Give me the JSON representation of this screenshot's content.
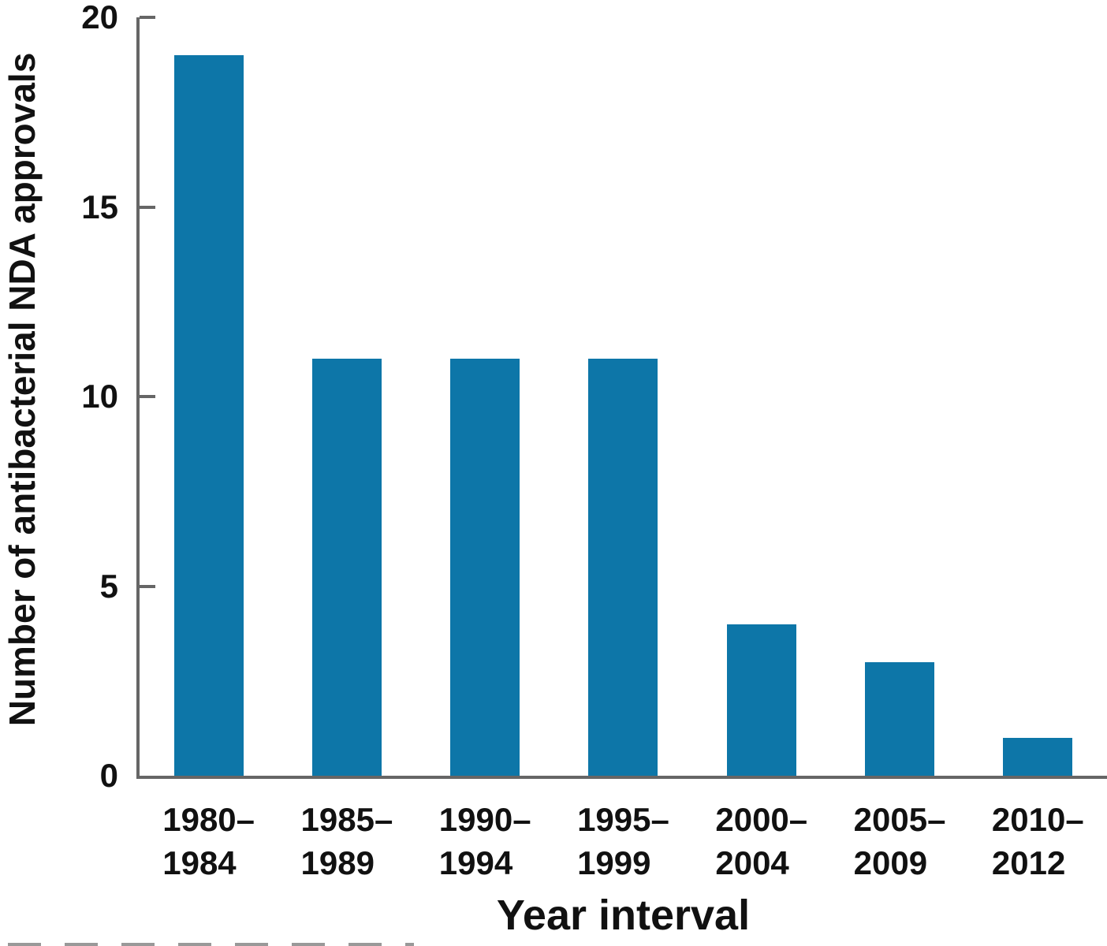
{
  "figure": {
    "y_axis_title": "Number of antibacterial NDA approvals",
    "x_axis_title": "Year interval"
  },
  "chart_data": {
    "type": "bar",
    "title": "",
    "xlabel": "Year interval",
    "ylabel": "Number of antibacterial NDA approvals",
    "categories": [
      "1980–1984",
      "1985–1989",
      "1990–1994",
      "1995–1999",
      "2000–2004",
      "2005–2009",
      "2010–2012"
    ],
    "category_labels_two_line": [
      [
        "1980–",
        "1984"
      ],
      [
        "1985–",
        "1989"
      ],
      [
        "1990–",
        "1994"
      ],
      [
        "1995–",
        "1999"
      ],
      [
        "2000–",
        "2004"
      ],
      [
        "2005–",
        "2009"
      ],
      [
        "2010–",
        "2012"
      ]
    ],
    "values": [
      19,
      11,
      11,
      11,
      4,
      3,
      1
    ],
    "ylim": [
      0,
      20
    ],
    "yticks": [
      0,
      5,
      10,
      15,
      20
    ],
    "grid": false,
    "legend": false,
    "bar_color": "#0d76a8",
    "axis_color": "#666666",
    "text_color": "#111111"
  }
}
